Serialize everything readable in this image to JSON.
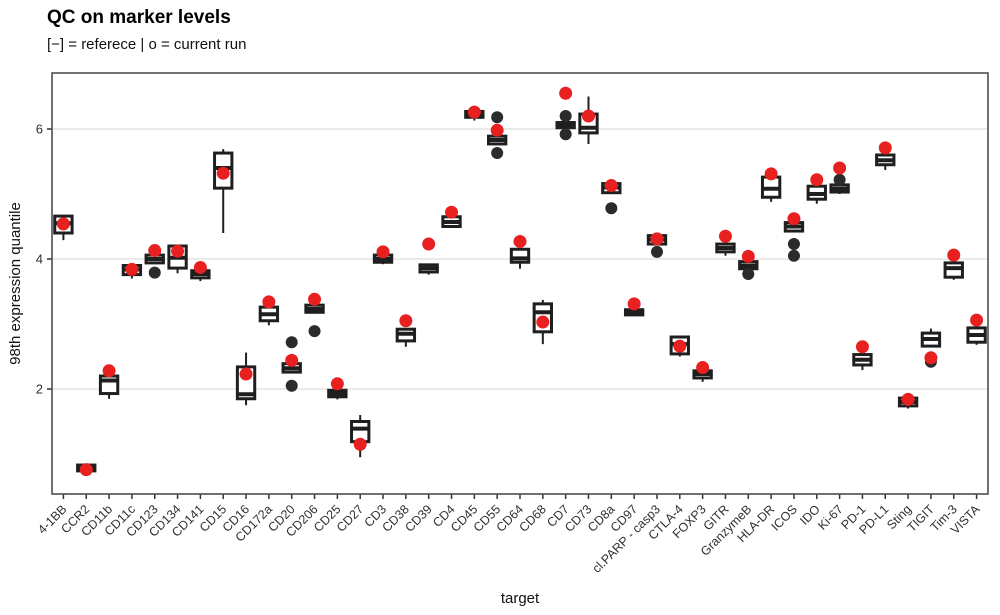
{
  "header": {
    "title": "QC on marker levels",
    "subtitle": "[−] = referece | o = current run"
  },
  "chart_data": {
    "type": "boxplot",
    "title": "QC on marker levels",
    "subtitle": "[−] = referece | o = current run",
    "xlabel": "target",
    "ylabel": "98th expression quantile",
    "yticks": [
      2,
      4,
      6
    ],
    "ylim": [
      0.38,
      6.86
    ],
    "grid": "horizontal-major-only",
    "legend_note": "[−] = reference boxplot, o = current run dot",
    "colors": {
      "box_stroke": "#1f1f1f",
      "box_fill": "#ffffff",
      "current_run_dot": "#e8201f",
      "outlier_dot": "#2b2b2b",
      "grid_line": "#e7e7e7",
      "panel_border": "#4d4d4d",
      "tick_text": "#303030"
    },
    "markers": [
      {
        "label": "4-1BB",
        "whislo": 4.29,
        "q1": 4.4,
        "med": 4.55,
        "q3": 4.66,
        "whishi": 4.66,
        "current": 4.54,
        "outliers": []
      },
      {
        "label": "CCR2",
        "whislo": 0.72,
        "q1": 0.74,
        "med": 0.78,
        "q3": 0.83,
        "whishi": 0.83,
        "current": 0.76,
        "outliers": []
      },
      {
        "label": "CD11b",
        "whislo": 1.85,
        "q1": 1.93,
        "med": 2.13,
        "q3": 2.2,
        "whishi": 2.2,
        "current": 2.28,
        "outliers": []
      },
      {
        "label": "CD11c",
        "whislo": 3.7,
        "q1": 3.76,
        "med": 3.84,
        "q3": 3.9,
        "whishi": 3.9,
        "current": 3.84,
        "outliers": []
      },
      {
        "label": "CD123",
        "whislo": 3.94,
        "q1": 3.94,
        "med": 4.0,
        "q3": 4.06,
        "whishi": 4.06,
        "current": 4.13,
        "outliers": [
          3.79
        ]
      },
      {
        "label": "CD134",
        "whislo": 3.78,
        "q1": 3.86,
        "med": 4.02,
        "q3": 4.2,
        "whishi": 4.2,
        "current": 4.12,
        "outliers": []
      },
      {
        "label": "CD141",
        "whislo": 3.66,
        "q1": 3.71,
        "med": 3.77,
        "q3": 3.82,
        "whishi": 3.82,
        "current": 3.87,
        "outliers": []
      },
      {
        "label": "CD15",
        "whislo": 4.4,
        "q1": 5.09,
        "med": 5.4,
        "q3": 5.63,
        "whishi": 5.69,
        "current": 5.32,
        "outliers": []
      },
      {
        "label": "CD16",
        "whislo": 1.75,
        "q1": 1.85,
        "med": 1.92,
        "q3": 2.34,
        "whishi": 2.56,
        "current": 2.23,
        "outliers": []
      },
      {
        "label": "CD172a",
        "whislo": 2.98,
        "q1": 3.05,
        "med": 3.15,
        "q3": 3.26,
        "whishi": 3.26,
        "current": 3.34,
        "outliers": []
      },
      {
        "label": "CD20",
        "whislo": 2.26,
        "q1": 2.26,
        "med": 2.32,
        "q3": 2.39,
        "whishi": 2.39,
        "current": 2.44,
        "outliers": [
          2.72,
          2.05
        ]
      },
      {
        "label": "CD206",
        "whislo": 3.18,
        "q1": 3.18,
        "med": 3.23,
        "q3": 3.29,
        "whishi": 3.29,
        "current": 3.38,
        "outliers": [
          2.89
        ]
      },
      {
        "label": "CD25",
        "whislo": 1.84,
        "q1": 1.88,
        "med": 1.93,
        "q3": 1.98,
        "whishi": 1.98,
        "current": 2.08,
        "outliers": []
      },
      {
        "label": "CD27",
        "whislo": 0.95,
        "q1": 1.19,
        "med": 1.39,
        "q3": 1.5,
        "whishi": 1.6,
        "current": 1.15,
        "outliers": []
      },
      {
        "label": "CD3",
        "whislo": 3.92,
        "q1": 3.95,
        "med": 4.0,
        "q3": 4.06,
        "whishi": 4.06,
        "current": 4.11,
        "outliers": []
      },
      {
        "label": "CD38",
        "whislo": 2.65,
        "q1": 2.74,
        "med": 2.85,
        "q3": 2.92,
        "whishi": 2.92,
        "current": 3.05,
        "outliers": []
      },
      {
        "label": "CD39",
        "whislo": 3.76,
        "q1": 3.8,
        "med": 3.86,
        "q3": 3.91,
        "whishi": 3.91,
        "current": 4.23,
        "outliers": []
      },
      {
        "label": "CD4",
        "whislo": 4.5,
        "q1": 4.5,
        "med": 4.57,
        "q3": 4.65,
        "whishi": 4.65,
        "current": 4.72,
        "outliers": []
      },
      {
        "label": "CD45",
        "whislo": 6.13,
        "q1": 6.18,
        "med": 6.22,
        "q3": 6.27,
        "whishi": 6.27,
        "current": 6.26,
        "outliers": []
      },
      {
        "label": "CD55",
        "whislo": 5.77,
        "q1": 5.77,
        "med": 5.83,
        "q3": 5.89,
        "whishi": 5.89,
        "current": 5.98,
        "outliers": [
          6.18,
          5.63
        ]
      },
      {
        "label": "CD64",
        "whislo": 3.85,
        "q1": 3.95,
        "med": 4.01,
        "q3": 4.15,
        "whishi": 4.15,
        "current": 4.27,
        "outliers": []
      },
      {
        "label": "CD68",
        "whislo": 2.69,
        "q1": 2.88,
        "med": 3.18,
        "q3": 3.31,
        "whishi": 3.37,
        "current": 3.03,
        "outliers": []
      },
      {
        "label": "CD7",
        "whislo": 5.98,
        "q1": 6.02,
        "med": 6.06,
        "q3": 6.1,
        "whishi": 6.1,
        "current": 6.55,
        "outliers": [
          6.2,
          5.92
        ]
      },
      {
        "label": "CD73",
        "whislo": 5.77,
        "q1": 5.94,
        "med": 6.02,
        "q3": 6.23,
        "whishi": 6.5,
        "current": 6.2,
        "outliers": []
      },
      {
        "label": "CD8a",
        "whislo": 5.02,
        "q1": 5.02,
        "med": 5.1,
        "q3": 5.16,
        "whishi": 5.16,
        "current": 5.13,
        "outliers": [
          4.78
        ]
      },
      {
        "label": "CD97",
        "whislo": 3.14,
        "q1": 3.14,
        "med": 3.18,
        "q3": 3.22,
        "whishi": 3.22,
        "current": 3.31,
        "outliers": []
      },
      {
        "label": "cl.PARP - casp3",
        "whislo": 4.23,
        "q1": 4.23,
        "med": 4.3,
        "q3": 4.36,
        "whishi": 4.36,
        "current": 4.31,
        "outliers": [
          4.11
        ]
      },
      {
        "label": "CTLA-4",
        "whislo": 2.5,
        "q1": 2.54,
        "med": 2.69,
        "q3": 2.8,
        "whishi": 2.8,
        "current": 2.66,
        "outliers": []
      },
      {
        "label": "FOXP3",
        "whislo": 2.11,
        "q1": 2.17,
        "med": 2.23,
        "q3": 2.28,
        "whishi": 2.28,
        "current": 2.33,
        "outliers": []
      },
      {
        "label": "GITR",
        "whislo": 4.05,
        "q1": 4.11,
        "med": 4.17,
        "q3": 4.23,
        "whishi": 4.23,
        "current": 4.35,
        "outliers": []
      },
      {
        "label": "GranzymeB",
        "whislo": 3.85,
        "q1": 3.85,
        "med": 3.9,
        "q3": 3.96,
        "whishi": 3.96,
        "current": 4.04,
        "outliers": [
          3.77
        ]
      },
      {
        "label": "HLA-DR",
        "whislo": 4.88,
        "q1": 4.95,
        "med": 5.08,
        "q3": 5.26,
        "whishi": 5.26,
        "current": 5.31,
        "outliers": []
      },
      {
        "label": "ICOS",
        "whislo": 4.43,
        "q1": 4.43,
        "med": 4.5,
        "q3": 4.56,
        "whishi": 4.56,
        "current": 4.62,
        "outliers": [
          4.23,
          4.05
        ]
      },
      {
        "label": "IDO",
        "whislo": 4.85,
        "q1": 4.92,
        "med": 5.0,
        "q3": 5.12,
        "whishi": 5.12,
        "current": 5.22,
        "outliers": []
      },
      {
        "label": "Ki-67",
        "whislo": 5.0,
        "q1": 5.03,
        "med": 5.08,
        "q3": 5.14,
        "whishi": 5.14,
        "current": 5.4,
        "outliers": [
          5.22
        ]
      },
      {
        "label": "PD-1",
        "whislo": 2.29,
        "q1": 2.37,
        "med": 2.45,
        "q3": 2.53,
        "whishi": 2.53,
        "current": 2.65,
        "outliers": []
      },
      {
        "label": "PD-L1",
        "whislo": 5.37,
        "q1": 5.45,
        "med": 5.52,
        "q3": 5.6,
        "whishi": 5.6,
        "current": 5.71,
        "outliers": []
      },
      {
        "label": "Sting",
        "whislo": 1.7,
        "q1": 1.74,
        "med": 1.8,
        "q3": 1.86,
        "whishi": 1.86,
        "current": 1.84,
        "outliers": []
      },
      {
        "label": "TIGIT",
        "whislo": 2.66,
        "q1": 2.66,
        "med": 2.77,
        "q3": 2.86,
        "whishi": 2.93,
        "current": 2.48,
        "outliers": [
          2.42
        ]
      },
      {
        "label": "Tim-3",
        "whislo": 3.68,
        "q1": 3.72,
        "med": 3.86,
        "q3": 3.94,
        "whishi": 3.94,
        "current": 4.06,
        "outliers": []
      },
      {
        "label": "VISTA",
        "whislo": 2.68,
        "q1": 2.72,
        "med": 2.83,
        "q3": 2.94,
        "whishi": 2.94,
        "current": 3.06,
        "outliers": []
      }
    ]
  }
}
